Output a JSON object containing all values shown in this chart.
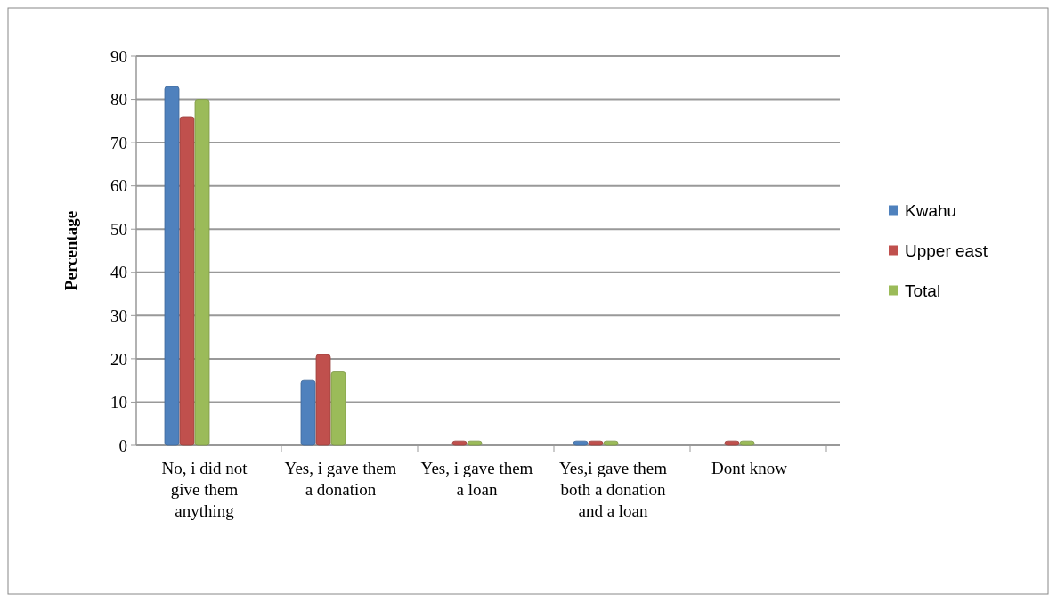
{
  "chart_data": {
    "type": "bar",
    "ylabel": "Percentage",
    "categories": [
      "No, i did not give them anything",
      "Yes, i gave them a donation",
      "Yes, i gave them a loan",
      "Yes,i gave them both a donation and a loan",
      "Dont know"
    ],
    "series": [
      {
        "name": "Kwahu",
        "color": "#4f81bd",
        "values": [
          83,
          15,
          0,
          1,
          0
        ]
      },
      {
        "name": "Upper east",
        "color": "#c0504d",
        "values": [
          76,
          21,
          1,
          1,
          1
        ]
      },
      {
        "name": "Total",
        "color": "#9bbb59",
        "values": [
          80,
          17,
          1,
          1,
          1
        ]
      }
    ],
    "ylim": [
      0,
      90
    ],
    "yticks": [
      0,
      10,
      20,
      30,
      40,
      50,
      60,
      70,
      80,
      90
    ],
    "grid": "y",
    "legend": "right"
  }
}
